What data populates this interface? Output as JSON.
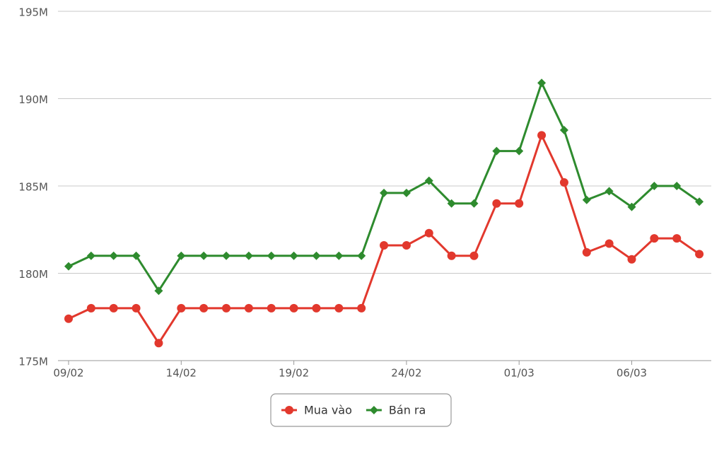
{
  "chart_data": {
    "type": "line",
    "categories": [
      "09/02",
      null,
      null,
      null,
      null,
      "14/02",
      null,
      null,
      null,
      null,
      "19/02",
      null,
      null,
      null,
      null,
      "24/02",
      null,
      null,
      null,
      null,
      "01/03",
      null,
      null,
      null,
      null,
      "06/03",
      null,
      null,
      null
    ],
    "series": [
      {
        "name": "Mua vào",
        "color": "#e2382d",
        "marker": "circle",
        "values": [
          177400000,
          178000000,
          178000000,
          178000000,
          176000000,
          178000000,
          178000000,
          178000000,
          178000000,
          178000000,
          178000000,
          178000000,
          178000000,
          178000000,
          181600000,
          181600000,
          182300000,
          181000000,
          181000000,
          184000000,
          184000000,
          187900000,
          185200000,
          181200000,
          181700000,
          180800000,
          182000000,
          182000000,
          181100000
        ]
      },
      {
        "name": "Bán ra",
        "color": "#2e8b2e",
        "marker": "diamond",
        "values": [
          180400000,
          181000000,
          181000000,
          181000000,
          179000000,
          181000000,
          181000000,
          181000000,
          181000000,
          181000000,
          181000000,
          181000000,
          181000000,
          181000000,
          184600000,
          184600000,
          185300000,
          184000000,
          184000000,
          187000000,
          187000000,
          190900000,
          188200000,
          184200000,
          184700000,
          183800000,
          185000000,
          185000000,
          184100000
        ]
      }
    ],
    "ylim": [
      175000000,
      195000000
    ],
    "yticks": [
      {
        "value": 175000000,
        "label": "175M"
      },
      {
        "value": 180000000,
        "label": "180M"
      },
      {
        "value": 185000000,
        "label": "185M"
      },
      {
        "value": 190000000,
        "label": "190M"
      },
      {
        "value": 195000000,
        "label": "195M"
      }
    ],
    "grid": true,
    "legend": "bottom"
  }
}
